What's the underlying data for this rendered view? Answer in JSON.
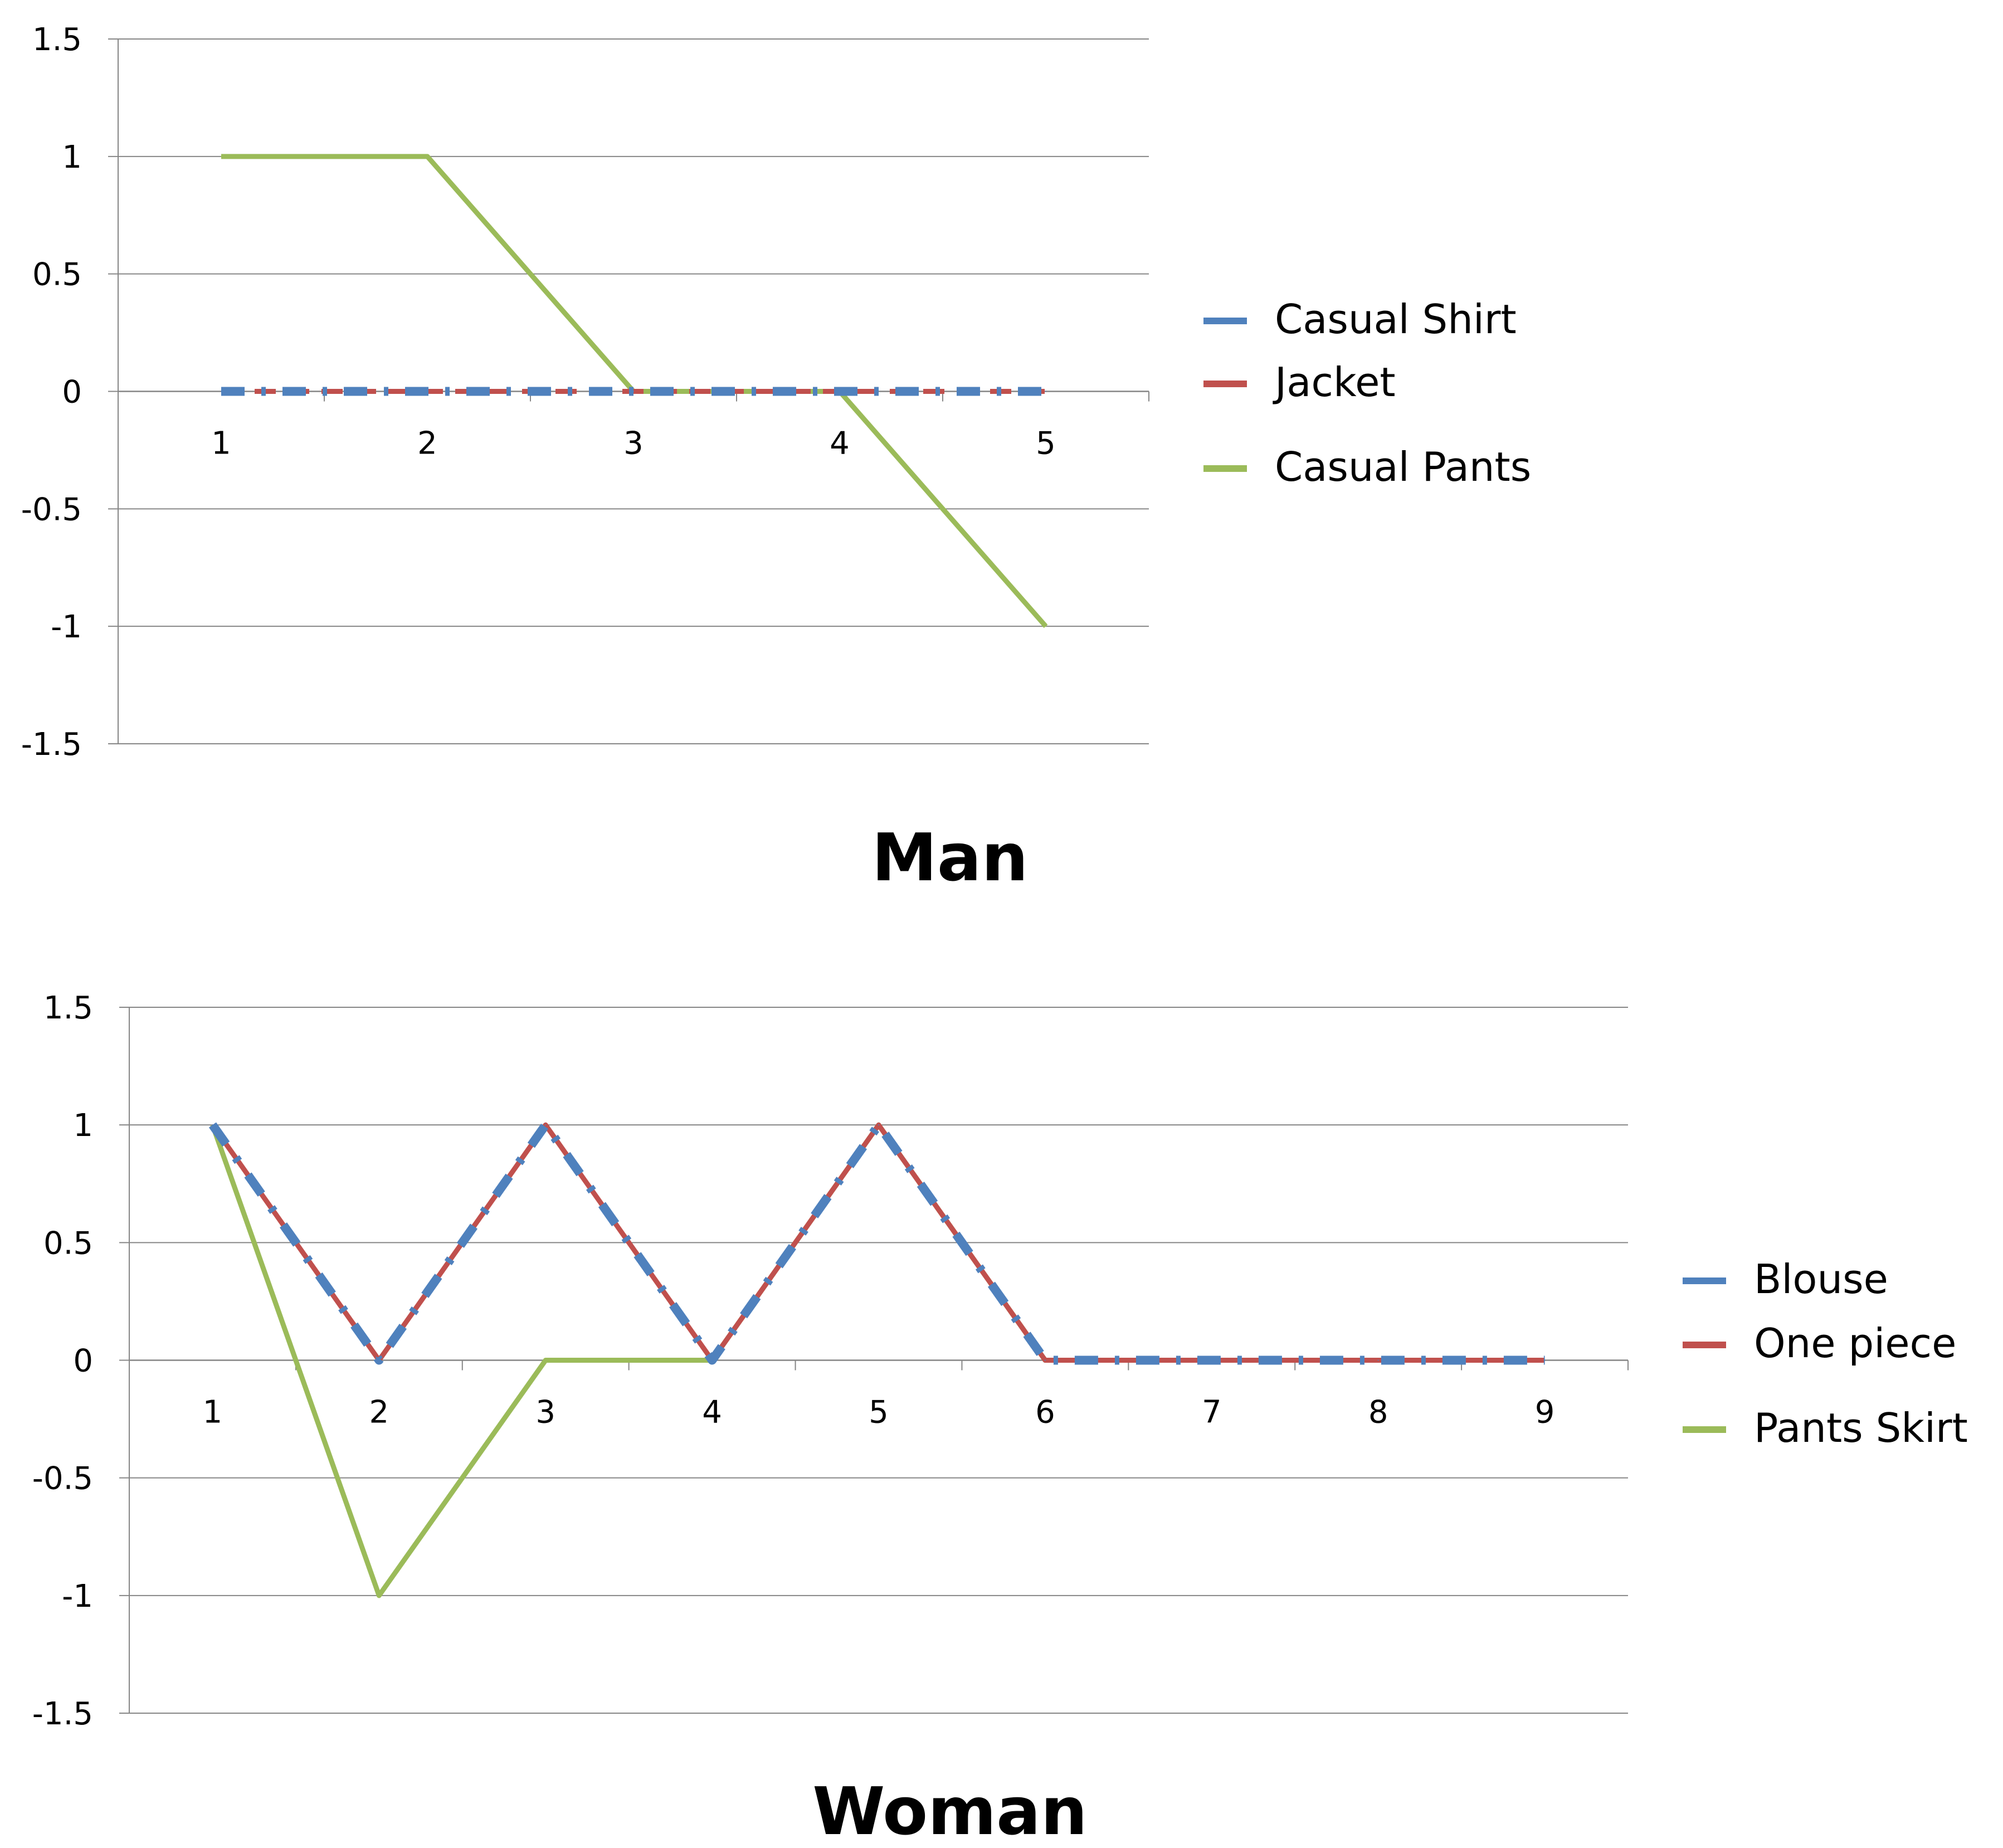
{
  "colors": {
    "blue": "#4F81BD",
    "red": "#C0504D",
    "green": "#9BBB59",
    "grid": "#868686",
    "text": "#000000"
  },
  "chart_data": [
    {
      "type": "line",
      "title": "Man",
      "x": [
        1,
        2,
        3,
        4,
        5
      ],
      "ylim": [
        -1.5,
        1.5
      ],
      "yticks": [
        "1.5",
        "1",
        "0.5",
        "0",
        "-0.5",
        "-1",
        "-1.5"
      ],
      "xticks": [
        "1",
        "2",
        "3",
        "4",
        "5"
      ],
      "grid": true,
      "legend_position": "right",
      "series": [
        {
          "name": "Casual Shirt",
          "values": [
            0,
            0,
            0,
            0,
            0
          ],
          "color": "#4F81BD",
          "style": "dash-dot"
        },
        {
          "name": "Jacket",
          "values": [
            0,
            0,
            0,
            0,
            0
          ],
          "color": "#C0504D",
          "style": "dash"
        },
        {
          "name": "Casual Pants",
          "values": [
            1,
            1,
            0,
            0,
            -1
          ],
          "color": "#9BBB59",
          "style": "solid"
        }
      ]
    },
    {
      "type": "line",
      "title": "Woman",
      "x": [
        1,
        2,
        3,
        4,
        5,
        6,
        7,
        8,
        9
      ],
      "ylim": [
        -1.5,
        1.5
      ],
      "yticks": [
        "1.5",
        "1",
        "0.5",
        "0",
        "-0.5",
        "-1",
        "-1.5"
      ],
      "xticks": [
        "1",
        "2",
        "3",
        "4",
        "5",
        "6",
        "7",
        "8",
        "9"
      ],
      "grid": true,
      "legend_position": "right",
      "series": [
        {
          "name": "Blouse",
          "values": [
            1,
            0,
            1,
            0,
            1,
            0,
            0,
            0,
            0
          ],
          "color": "#4F81BD",
          "style": "dash-dot"
        },
        {
          "name": "One piece",
          "values": [
            1,
            0,
            1,
            0,
            1,
            0,
            0,
            0,
            0
          ],
          "color": "#C0504D",
          "style": "solid"
        },
        {
          "name": "Pants Skirt",
          "values": [
            1,
            -1,
            0,
            0,
            1,
            0,
            0,
            0,
            0
          ],
          "color": "#9BBB59",
          "style": "solid"
        }
      ]
    }
  ]
}
